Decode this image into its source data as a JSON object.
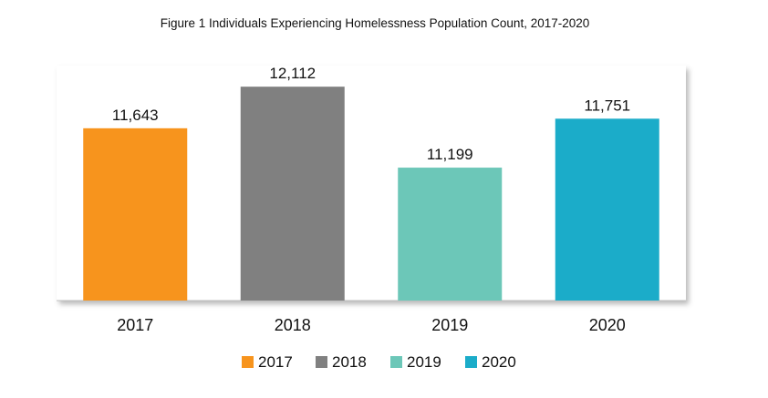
{
  "chart_data": {
    "type": "bar",
    "title": "Figure 1 Individuals Experiencing Homelessness Population Count, 2017-2020",
    "xlabel": "",
    "ylabel": "",
    "categories": [
      "2017",
      "2018",
      "2019",
      "2020"
    ],
    "values": [
      11643,
      12112,
      11199,
      11751
    ],
    "value_labels": [
      "11,643",
      "12,112",
      "11,199",
      "11,751"
    ],
    "colors": [
      "#f7941d",
      "#808080",
      "#6cc7b8",
      "#1bacc9"
    ],
    "ylim": [
      9700,
      12350
    ],
    "grid": false,
    "legend": {
      "placement": "bottom",
      "entries": [
        "2017",
        "2018",
        "2019",
        "2020"
      ]
    }
  }
}
